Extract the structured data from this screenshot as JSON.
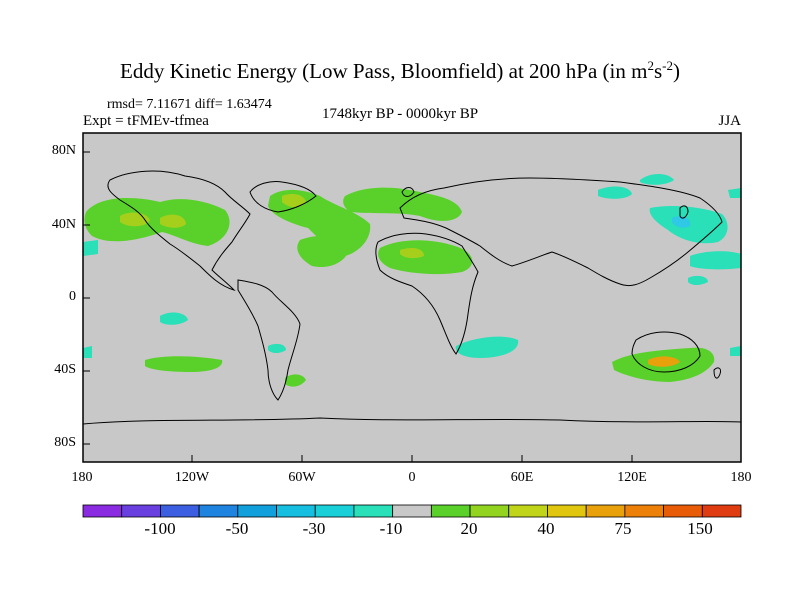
{
  "title": {
    "main": "Eddy Kinetic Energy (Low Pass, Bloomfield) at 200 hPa (in m",
    "sup1": "2",
    "mid": "s",
    "sup2": "-2",
    "end": ")"
  },
  "stats": "rmsd= 7.11671 diff= 1.63474",
  "experiment": "Expt = tFMEv-tfmea",
  "period": "1748kyr BP - 0000kyr BP",
  "season": "JJA",
  "lat_labels": [
    "80N",
    "40N",
    "0",
    "40S",
    "80S"
  ],
  "lon_labels": [
    "180",
    "120W",
    "60W",
    "0",
    "60E",
    "120E",
    "180"
  ],
  "colorbar": {
    "colors": [
      "#8a2be2",
      "#6a3fe0",
      "#3b5fe0",
      "#1f84e0",
      "#12a0dc",
      "#16bfe0",
      "#1ad0d8",
      "#29e0b8",
      "#c8c8c8",
      "#5ad12a",
      "#93d420",
      "#c0d41a",
      "#e0c60f",
      "#e8a10a",
      "#ec8008",
      "#e85c08",
      "#e03c12"
    ],
    "labels": [
      "-100",
      "-50",
      "-30",
      "-10",
      "20",
      "40",
      "75",
      "150"
    ]
  },
  "palette": {
    "background": "#c8c8c8",
    "green": "#5ad12a",
    "yellow_green": "#a6cf1c",
    "cyan": "#29e0b8",
    "blue": "#2fc8e6",
    "orange": "#e8a10a"
  }
}
